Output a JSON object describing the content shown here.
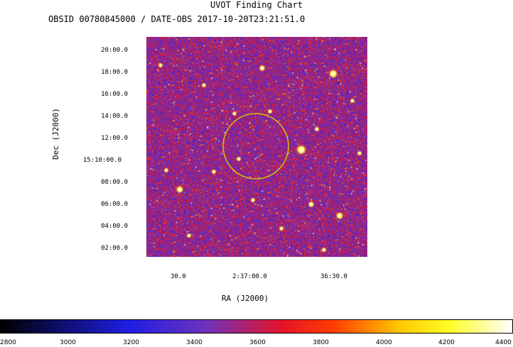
{
  "header": {
    "title": "UVOT Finding Chart",
    "subtitle": "OBSID 00780845000 / DATE-OBS 2017-10-20T23:21:51.0"
  },
  "axes": {
    "dec_label": "Dec  (J2000)",
    "ra_label": "RA (J2000)",
    "dec_ticks": [
      "20:00.0",
      "18:00.0",
      "16:00.0",
      "14:00.0",
      "12:00.0",
      "15:10:00.0",
      "08:00.0",
      "06:00.0",
      "04:00.0",
      "02:00.0"
    ],
    "ra_ticks": [
      "30.0",
      "2:37:00.0",
      "36:30.0"
    ]
  },
  "colorbar": {
    "ticks": [
      "2800",
      "3000",
      "3200",
      "3400",
      "3600",
      "3800",
      "4000",
      "4200",
      "4400"
    ],
    "range": [
      2800,
      4400
    ]
  },
  "overlay": {
    "circle_color": "#d8c100"
  }
}
